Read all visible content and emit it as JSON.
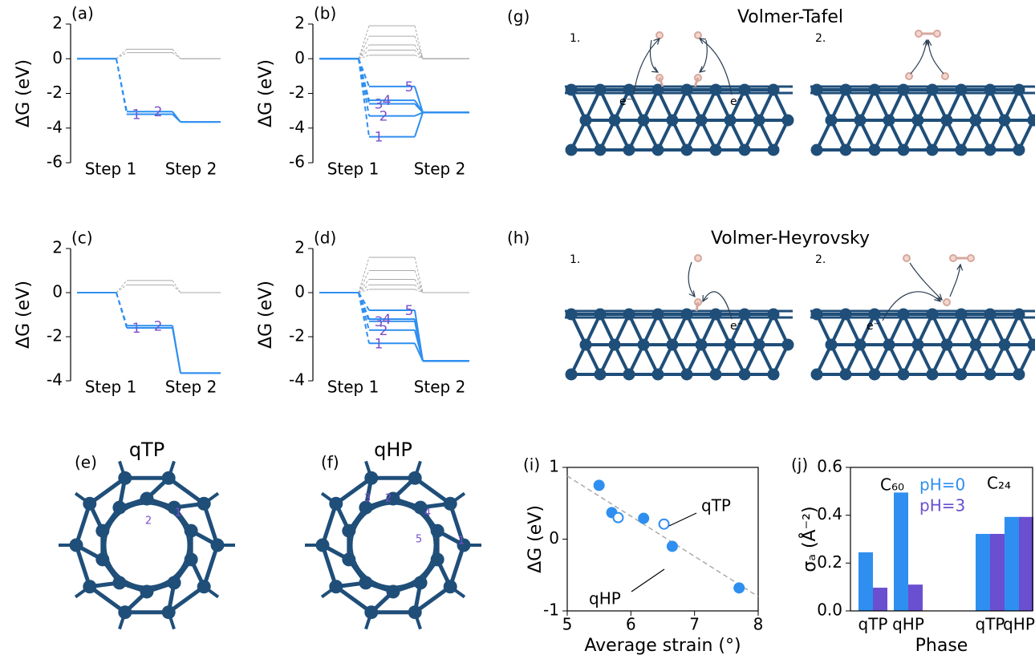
{
  "chart_data": [
    {
      "type": "energy",
      "panel_label": "(a)",
      "ylabel": "ΔG (eV)",
      "categories": [
        null,
        "Step 1",
        "Step 2"
      ],
      "ylim": [
        -6,
        2
      ],
      "yticks": [
        -6,
        -4,
        -2,
        0,
        2
      ],
      "series": [
        {
          "color": "#aaaaaa",
          "values": [
            0,
            0.55,
            0
          ]
        },
        {
          "color": "#aaaaaa",
          "values": [
            0,
            0.35,
            0
          ]
        },
        {
          "name": "1",
          "color": "#2f8ff0",
          "values": [
            0,
            -3.2,
            -3.65
          ]
        },
        {
          "name": "2",
          "color": "#2f8ff0",
          "values": [
            0,
            -3.05,
            -3.65
          ]
        }
      ]
    },
    {
      "type": "energy",
      "panel_label": "(b)",
      "ylabel": "ΔG (eV)",
      "categories": [
        null,
        "Step 1",
        "Step 2"
      ],
      "ylim": [
        -6,
        2
      ],
      "yticks": [
        -6,
        -4,
        -2,
        0,
        2
      ],
      "series": [
        {
          "color": "#aaaaaa",
          "values": [
            0,
            1.9,
            0
          ]
        },
        {
          "color": "#aaaaaa",
          "values": [
            0,
            1.3,
            0
          ]
        },
        {
          "color": "#aaaaaa",
          "values": [
            0,
            0.8,
            0
          ]
        },
        {
          "color": "#aaaaaa",
          "values": [
            0,
            0.5,
            0
          ]
        },
        {
          "color": "#aaaaaa",
          "values": [
            0,
            0.2,
            0
          ]
        },
        {
          "name": "1",
          "color": "#2f8ff0",
          "values": [
            0,
            -4.5,
            -3.1
          ]
        },
        {
          "name": "2",
          "color": "#2f8ff0",
          "values": [
            0,
            -3.3,
            -3.1
          ]
        },
        {
          "name": "3",
          "color": "#2f8ff0",
          "values": [
            0,
            -2.6,
            -3.1
          ]
        },
        {
          "name": "4",
          "color": "#2f8ff0",
          "values": [
            0,
            -2.4,
            -3.1
          ]
        },
        {
          "name": "5",
          "color": "#2f8ff0",
          "values": [
            0,
            -1.6,
            -3.1
          ]
        }
      ]
    },
    {
      "type": "energy",
      "panel_label": "(c)",
      "ylabel": "ΔG (eV)",
      "categories": [
        null,
        "Step 1",
        "Step 2"
      ],
      "ylim": [
        -4,
        2
      ],
      "yticks": [
        -4,
        -2,
        0,
        2
      ],
      "series": [
        {
          "color": "#aaaaaa",
          "values": [
            0,
            0.55,
            0
          ]
        },
        {
          "color": "#aaaaaa",
          "values": [
            0,
            0.35,
            0
          ]
        },
        {
          "name": "1",
          "color": "#2f8ff0",
          "values": [
            0,
            -1.6,
            -3.65
          ]
        },
        {
          "name": "2",
          "color": "#2f8ff0",
          "values": [
            0,
            -1.5,
            -3.65
          ]
        }
      ]
    },
    {
      "type": "energy",
      "panel_label": "(d)",
      "ylabel": "ΔG (eV)",
      "categories": [
        null,
        "Step 1",
        "Step 2"
      ],
      "ylim": [
        -4,
        2
      ],
      "yticks": [
        -4,
        -2,
        0,
        2
      ],
      "series": [
        {
          "color": "#aaaaaa",
          "values": [
            0,
            1.6,
            0
          ]
        },
        {
          "color": "#aaaaaa",
          "values": [
            0,
            1.0,
            0
          ]
        },
        {
          "color": "#aaaaaa",
          "values": [
            0,
            0.6,
            0
          ]
        },
        {
          "color": "#aaaaaa",
          "values": [
            0,
            0.35,
            0
          ]
        },
        {
          "color": "#aaaaaa",
          "values": [
            0,
            0.15,
            0
          ]
        },
        {
          "name": "1",
          "color": "#2f8ff0",
          "values": [
            0,
            -2.3,
            -3.1
          ]
        },
        {
          "name": "2",
          "color": "#2f8ff0",
          "values": [
            0,
            -1.7,
            -3.1
          ]
        },
        {
          "name": "3",
          "color": "#2f8ff0",
          "values": [
            0,
            -1.3,
            -3.1
          ]
        },
        {
          "name": "4",
          "color": "#2f8ff0",
          "values": [
            0,
            -1.2,
            -3.1
          ]
        },
        {
          "name": "5",
          "color": "#2f8ff0",
          "values": [
            0,
            -0.8,
            -3.1
          ]
        }
      ]
    },
    {
      "type": "scatter",
      "panel_label": "(i)",
      "xlabel": "Average strain (°)",
      "ylabel": "ΔG (eV)",
      "xlim": [
        5,
        8
      ],
      "ylim": [
        -1,
        1
      ],
      "xticks": [
        5,
        6,
        7,
        8
      ],
      "yticks": [
        -1,
        0,
        1
      ],
      "series": [
        {
          "color": "#2f8ff0",
          "filled": true,
          "x": [
            5.5,
            5.7,
            6.2,
            6.65,
            7.7
          ],
          "values": [
            0.75,
            0.37,
            0.29,
            -0.1,
            -0.68
          ]
        },
        {
          "color": "#2f8ff0",
          "filled": false,
          "x": [
            5.8,
            6.52
          ],
          "values": [
            0.3,
            0.21
          ]
        }
      ],
      "fit": {
        "color": "#aaaaaa",
        "x": [
          5,
          8
        ],
        "values": [
          0.88,
          -0.8
        ]
      },
      "annotations": [
        "qTP",
        "qHP"
      ]
    },
    {
      "type": "bar",
      "panel_label": "(j)",
      "xlabel": "Phase",
      "ylabel": "σₐ (Å⁻²)",
      "categories": [
        "qTP",
        "qHP",
        "qTP",
        "qHP"
      ],
      "group_labels": [
        "C₆₀",
        "C₂₄"
      ],
      "ylim": [
        0,
        0.6
      ],
      "yticks": [
        {
          "value": 0,
          "label": "0.0"
        },
        0.2,
        0.4,
        0.6
      ],
      "series": [
        {
          "name": "pH=0",
          "color": "#2f8ff0",
          "values": [
            0.245,
            0.495,
            0.322,
            0.393
          ]
        },
        {
          "name": "pH=3",
          "color": "#6a4fd0",
          "values": [
            0.097,
            0.11,
            0.322,
            0.393
          ]
        }
      ]
    }
  ],
  "reaction_diagrams": [
    {
      "panel_label": "(g)",
      "title": "Volmer-Tafel",
      "steps": [
        "1.",
        "2."
      ],
      "electron_labels": [
        "e⁻",
        "e⁻"
      ]
    },
    {
      "panel_label": "(h)",
      "title": "Volmer-Heyrovsky",
      "steps": [
        "1.",
        "2."
      ],
      "electron_labels": [
        "e⁻",
        "e⁻"
      ]
    }
  ],
  "cages": [
    {
      "panel_label": "(e)",
      "title": "qTP",
      "site_labels": [
        "1",
        "2"
      ]
    },
    {
      "panel_label": "(f)",
      "title": "qHP",
      "site_labels": [
        "1",
        "2",
        "3",
        "4",
        "5"
      ]
    }
  ]
}
